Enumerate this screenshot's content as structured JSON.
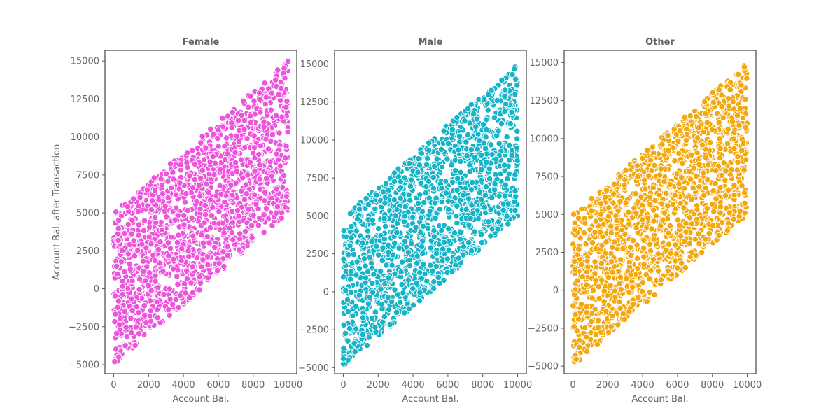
{
  "chart_data": [
    {
      "type": "scatter",
      "title": "Female",
      "xlabel": "Account Bal.",
      "ylabel": "Account Bal. after Transaction",
      "color": "#ee55dd",
      "xlim": [
        -500,
        10500
      ],
      "ylim": [
        -5600,
        15700
      ],
      "xticks": [
        0,
        2000,
        4000,
        6000,
        8000,
        10000
      ],
      "yticks": [
        -5000,
        -2500,
        0,
        2500,
        5000,
        7500,
        10000,
        12500,
        15000
      ],
      "xtick_labels": [
        "0",
        "2000",
        "4000",
        "6000",
        "8000",
        "10000"
      ],
      "ytick_labels": [
        "−5000",
        "−2500",
        "0",
        "2500",
        "5000",
        "7500",
        "10000",
        "12500",
        "15000"
      ],
      "n_points": 1600,
      "points_description": "Uniform cloud inside a parallelogram: y between x-5000 and x+5000, x from 0 to 10000",
      "series": [
        {
          "x": [
            80,
            200,
            350,
            500,
            700,
            900,
            1100,
            1300,
            1500,
            1800,
            2100,
            2400,
            2700,
            3000,
            3300,
            3600,
            3900,
            4200,
            4500,
            4800,
            5100,
            5400,
            5700,
            6000,
            6300,
            6600,
            6900,
            7200,
            7500,
            7800,
            8100,
            8400,
            8700,
            9000,
            9300,
            9600,
            9800,
            9900,
            9950,
            10000
          ],
          "y": [
            -4800,
            4900,
            -3900,
            5500,
            800,
            -3000,
            5700,
            1500,
            6100,
            -2200,
            6500,
            200,
            7500,
            -1200,
            7900,
            2000,
            8600,
            -800,
            9100,
            3000,
            9800,
            600,
            10200,
            1800,
            11200,
            2500,
            11800,
            3500,
            12200,
            4000,
            13000,
            4300,
            13500,
            5000,
            14200,
            5200,
            14700,
            6500,
            11000,
            10600
          ]
        }
      ]
    },
    {
      "type": "scatter",
      "title": "Male",
      "xlabel": "Account Bal.",
      "ylabel": "",
      "color": "#17b4c8",
      "xlim": [
        -500,
        10500
      ],
      "ylim": [
        -5400,
        15900
      ],
      "xticks": [
        0,
        2000,
        4000,
        6000,
        8000,
        10000
      ],
      "yticks": [
        -5000,
        -2500,
        0,
        2500,
        5000,
        7500,
        10000,
        12500,
        15000
      ],
      "xtick_labels": [
        "0",
        "2000",
        "4000",
        "6000",
        "8000",
        "10000"
      ],
      "ytick_labels": [
        "−5000",
        "−2500",
        "0",
        "2500",
        "5000",
        "7500",
        "10000",
        "12500",
        "15000"
      ],
      "n_points": 1600,
      "points_description": "Uniform cloud inside a parallelogram: y between x-5000 and x+5000, x from 0 to 10000",
      "series": [
        {
          "x": [
            150,
            300,
            450,
            600,
            800,
            1000,
            1200,
            1400,
            1700,
            2000,
            2300,
            2600,
            2900,
            3200,
            3500,
            3800,
            4100,
            4400,
            4700,
            5000,
            5300,
            5600,
            5900,
            6200,
            6500,
            6800,
            7100,
            7400,
            7700,
            8000,
            8300,
            8600,
            8900,
            9200,
            9500,
            9700,
            9850,
            9950,
            10000,
            10000
          ],
          "y": [
            -4300,
            3900,
            -3800,
            5300,
            500,
            -3000,
            5800,
            1400,
            6100,
            -2400,
            6900,
            300,
            7700,
            -1000,
            8400,
            2200,
            8800,
            -500,
            9300,
            2800,
            10000,
            1000,
            10900,
            2000,
            11100,
            2600,
            11900,
            3300,
            12100,
            4100,
            12900,
            4600,
            13600,
            5200,
            14300,
            5400,
            14800,
            6700,
            5000,
            8500
          ]
        }
      ]
    },
    {
      "type": "scatter",
      "title": "Other",
      "xlabel": "Account Bal.",
      "ylabel": "",
      "color": "#f4a80f",
      "xlim": [
        -500,
        10500
      ],
      "ylim": [
        -5500,
        15800
      ],
      "xticks": [
        0,
        2000,
        4000,
        6000,
        8000,
        10000
      ],
      "yticks": [
        -5000,
        -2500,
        0,
        2500,
        5000,
        7500,
        10000,
        12500,
        15000
      ],
      "xtick_labels": [
        "0",
        "2000",
        "4000",
        "6000",
        "8000",
        "10000"
      ],
      "ytick_labels": [
        "−5000",
        "−2500",
        "0",
        "2500",
        "5000",
        "7500",
        "10000",
        "12500",
        "15000"
      ],
      "n_points": 1600,
      "points_description": "Uniform cloud inside a parallelogram: y between x-5000 and x+5000, x from 0 to 10000",
      "series": [
        {
          "x": [
            100,
            250,
            400,
            550,
            750,
            950,
            1150,
            1350,
            1600,
            1900,
            2200,
            2500,
            2800,
            3100,
            3400,
            3700,
            4000,
            4300,
            4600,
            4900,
            5200,
            5500,
            5800,
            6100,
            6400,
            6700,
            7000,
            7300,
            7600,
            7900,
            8200,
            8500,
            8800,
            9100,
            9400,
            9650,
            9800,
            9900,
            9950,
            10000
          ],
          "y": [
            -4700,
            5100,
            -3800,
            5400,
            700,
            -3100,
            5600,
            1600,
            6200,
            -2300,
            6700,
            200,
            7500,
            -1100,
            8000,
            2100,
            8900,
            -600,
            9200,
            2900,
            10000,
            800,
            10400,
            1900,
            11100,
            2400,
            11800,
            3400,
            12500,
            4000,
            13100,
            4400,
            13700,
            5100,
            14200,
            5300,
            14700,
            6600,
            9700,
            11000
          ]
        }
      ]
    }
  ]
}
